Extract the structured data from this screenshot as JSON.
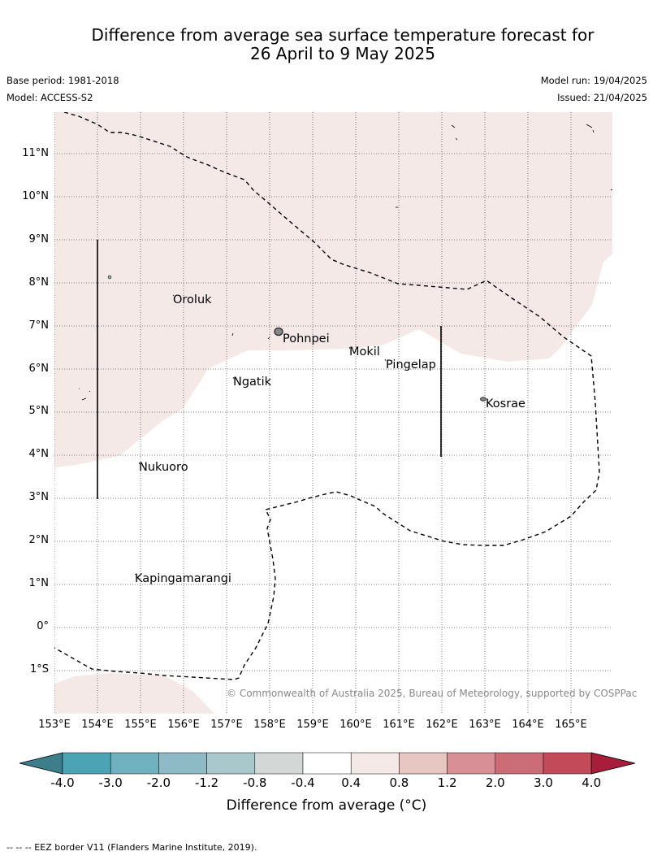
{
  "title_line1": "Difference from average sea surface temperature forecast for",
  "title_line2": "26 April to 9 May 2025",
  "base_period": "Base period: 1981-2018",
  "model": "Model: ACCESS-S2",
  "model_run": "Model run: 19/04/2025",
  "issued": "Issued: 21/04/2025",
  "lat_labels": [
    "11°N",
    "10°N",
    "9°N",
    "8°N",
    "7°N",
    "6°N",
    "5°N",
    "4°N",
    "3°N",
    "2°N",
    "1°N",
    "0°",
    "1°S"
  ],
  "lon_labels": [
    "153°E",
    "154°E",
    "155°E",
    "156°E",
    "157°E",
    "158°E",
    "159°E",
    "160°E",
    "161°E",
    "162°E",
    "163°E",
    "164°E",
    "165°E"
  ],
  "places": {
    "oroluk": "Oroluk",
    "pohnpei": "Pohnpei",
    "mokil": "Mokil",
    "pingelap": "Pingelap",
    "ngatik": "Ngatik",
    "kosrae": "Kosrae",
    "nukuoro": "Nukuoro",
    "kapingamarangi": "Kapingamarangi"
  },
  "copyright": "© Commonwealth of Australia 2025, Bureau of Meteorology, supported by COSPPac",
  "colorbar": {
    "ticks": [
      "-4.0",
      "-3.0",
      "-2.0",
      "-1.2",
      "-0.8",
      "-0.4",
      "0.4",
      "0.8",
      "1.2",
      "2.0",
      "3.0",
      "4.0"
    ],
    "colors": [
      "#3c7f8b",
      "#4aa4b4",
      "#6fb1bf",
      "#8dbac4",
      "#a9c8cc",
      "#d3d8d7",
      "#ffffff",
      "#f5e9e8",
      "#e8c6c2",
      "#d89096",
      "#cc6c77",
      "#c24a59",
      "#a81e3a"
    ],
    "label": "Difference from average (°C)"
  },
  "footnote": "--  --  -- EEZ border V11 (Flanders Marine Institute, 2019).",
  "map_colors": {
    "warm_anomaly": "#f5e9e8",
    "neutral": "#ffffff",
    "grid": "#555555",
    "eez": "#000000"
  }
}
